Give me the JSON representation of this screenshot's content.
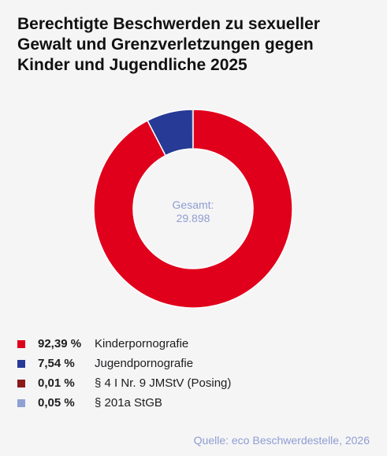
{
  "title_lines": [
    "Berechtigte Beschwerden zu sexueller",
    "Gewalt und Grenzverletzungen gegen",
    "Kinder und Jugendliche 2025"
  ],
  "chart_data": {
    "type": "pie",
    "variant": "donut",
    "title": "Berechtigte Beschwerden zu sexueller Gewalt und Grenzverletzungen gegen Kinder und Jugendliche 2025",
    "center_label": "Gesamt:",
    "center_value": "29.898",
    "slices": [
      {
        "label": "Kinderpornografie",
        "value": 92.39,
        "value_label": "92,39 %",
        "color": "#e0001b"
      },
      {
        "label": "Jugendpornografie",
        "value": 7.54,
        "value_label": "7,54 %",
        "color": "#263a96"
      },
      {
        "label": "§ 4 I Nr. 9 JMStV (Posing)",
        "value": 0.01,
        "value_label": "0,01 %",
        "color": "#8b1a1a"
      },
      {
        "label": "§ 201a StGB",
        "value": 0.05,
        "value_label": "0,05 %",
        "color": "#8fa0d4"
      }
    ],
    "legend_position": "bottom-left"
  },
  "source": "Quelle: eco Beschwerdestelle, 2026"
}
